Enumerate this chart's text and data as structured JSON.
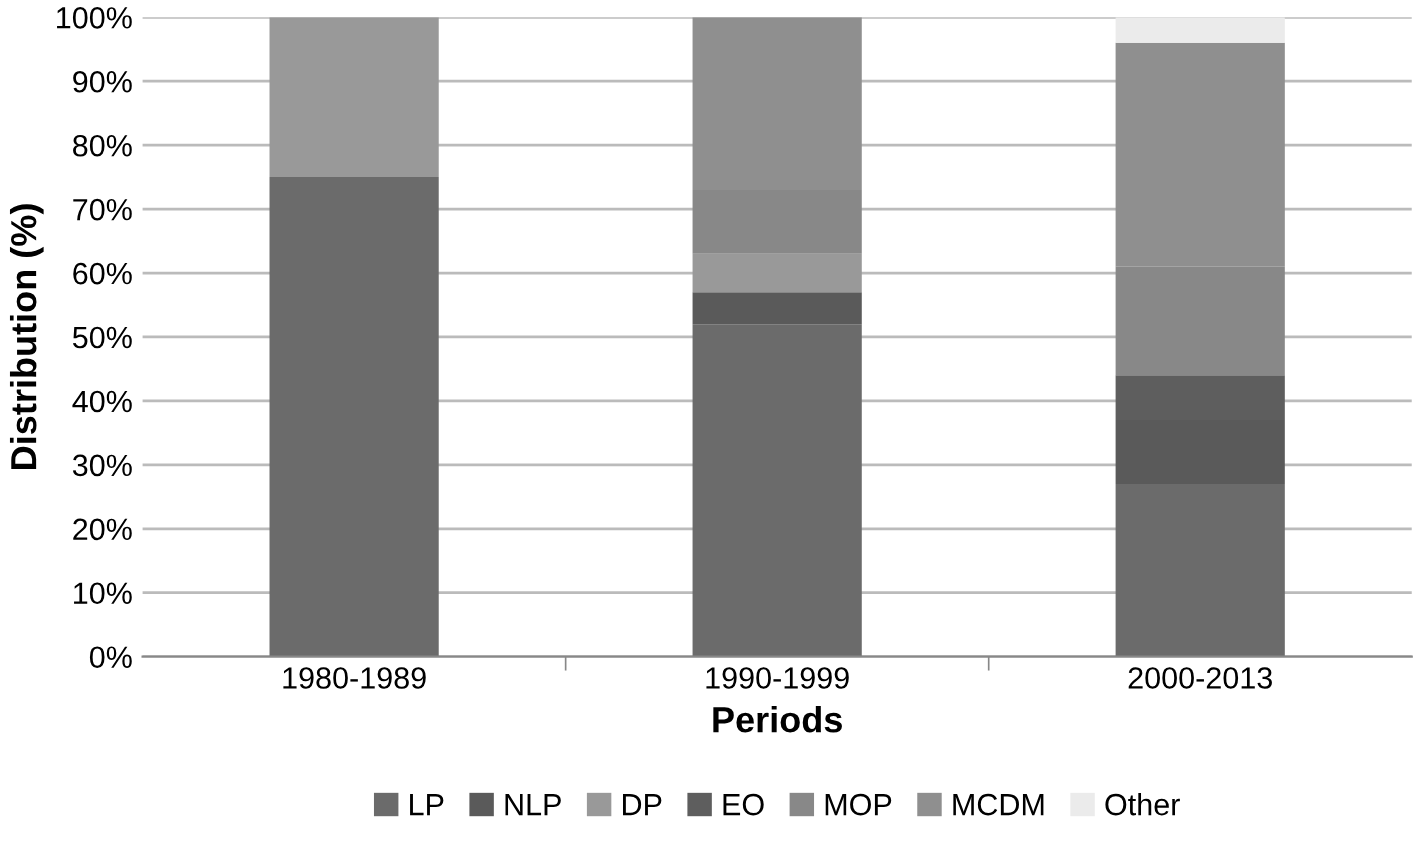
{
  "chart_data": {
    "type": "bar",
    "stacked": true,
    "xlabel": "Periods",
    "ylabel": "Distribution (%)",
    "categories": [
      "1980-1989",
      "1990-1999",
      "2000-2013"
    ],
    "series": [
      {
        "name": "LP",
        "color": "#6b6b6b",
        "values": [
          75,
          52,
          27
        ]
      },
      {
        "name": "NLP",
        "color": "#5a5a5a",
        "values": [
          0,
          5,
          10
        ]
      },
      {
        "name": "DP",
        "color": "#999999",
        "values": [
          25,
          6,
          0
        ]
      },
      {
        "name": "EO",
        "color": "#5e5e5e",
        "values": [
          0,
          0,
          7
        ]
      },
      {
        "name": "MOP",
        "color": "#888888",
        "values": [
          0,
          10,
          17
        ]
      },
      {
        "name": "MCDM",
        "color": "#8f8f8f",
        "values": [
          0,
          27,
          35
        ]
      },
      {
        "name": "Other",
        "color": "#ebebeb",
        "values": [
          0,
          0,
          4
        ]
      }
    ],
    "ylim": [
      0,
      100
    ],
    "yticks": [
      {
        "value": 0,
        "label": "0%"
      },
      {
        "value": 10,
        "label": "10%"
      },
      {
        "value": 20,
        "label": "20%"
      },
      {
        "value": 30,
        "label": "30%"
      },
      {
        "value": 40,
        "label": "40%"
      },
      {
        "value": 50,
        "label": "50%"
      },
      {
        "value": 60,
        "label": "60%"
      },
      {
        "value": 70,
        "label": "70%"
      },
      {
        "value": 80,
        "label": "80%"
      },
      {
        "value": 90,
        "label": "90%"
      },
      {
        "value": 100,
        "label": "100%"
      }
    ],
    "grid": "y",
    "legend": "bottom"
  }
}
